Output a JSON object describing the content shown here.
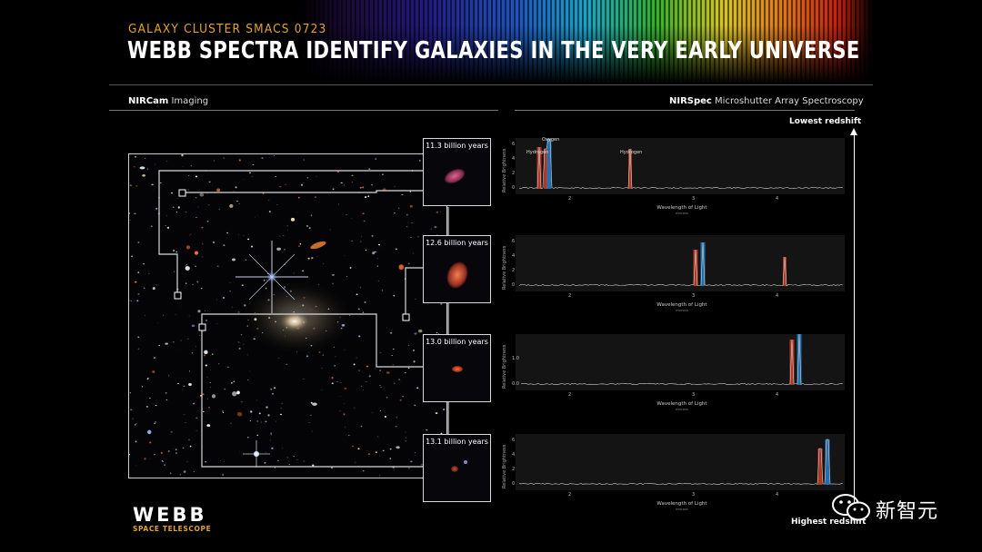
{
  "header": {
    "subtitle": "GALAXY CLUSTER SMACS 0723",
    "title": "WEBB SPECTRA IDENTIFY GALAXIES IN THE VERY EARLY UNIVERSE"
  },
  "left_section": {
    "bold": "NIRCam",
    "rest": " Imaging"
  },
  "right_section": {
    "bold": "NIRSpec",
    "rest": " Microshutter Array Spectroscopy"
  },
  "thumbnails": [
    {
      "label": "11.3 billion years"
    },
    {
      "label": "12.6 billion years"
    },
    {
      "label": "13.0 billion years"
    },
    {
      "label": "13.1 billion years"
    }
  ],
  "spectra": {
    "ylabel": "Relative Brightness",
    "xlabel": "Wavelength of Light",
    "xunit": "microns",
    "xticks": [
      "2",
      "3",
      "4"
    ],
    "panels": [
      {
        "yticks": [
          "6",
          "4",
          "2",
          "0"
        ],
        "line_labels": [
          "Hydrogen",
          "Oxygen",
          "Hydrogen"
        ]
      },
      {
        "yticks": [
          "6",
          "4",
          "2",
          "0"
        ],
        "line_labels": []
      },
      {
        "yticks": [
          "1.0",
          "0.0"
        ],
        "line_labels": []
      },
      {
        "yticks": [
          "6",
          "4",
          "2",
          "0"
        ],
        "line_labels": []
      }
    ]
  },
  "redshift": {
    "low": "Lowest redshift",
    "high": "Highest redshift"
  },
  "logo": {
    "name": "WEBB",
    "sub": "SPACE TELESCOPE"
  },
  "watermark": {
    "text": "新智元"
  },
  "colors": {
    "accent": "#e3a42a",
    "hydrogen": "#e0442a",
    "oxygen": "#2a8ee0"
  }
}
